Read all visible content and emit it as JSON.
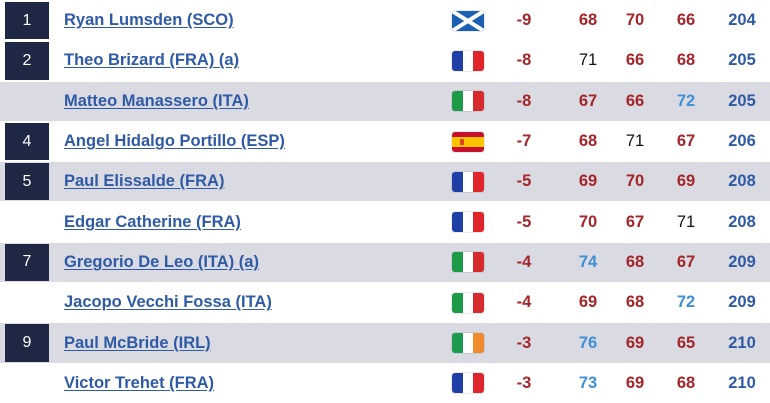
{
  "leaderboard": {
    "rows": [
      {
        "pos": "1",
        "player": "Ryan Lumsden (SCO)",
        "flag": "scotland-flag",
        "to_par": "-9",
        "rounds": [
          "68",
          "70",
          "66"
        ],
        "round_colors": [
          "red",
          "red",
          "red"
        ],
        "total": "204",
        "shaded": false
      },
      {
        "pos": "2",
        "player": "Theo Brizard (FRA) (a)",
        "flag": "france-flag",
        "to_par": "-8",
        "rounds": [
          "71",
          "66",
          "68"
        ],
        "round_colors": [
          "black",
          "red",
          "red"
        ],
        "total": "205",
        "shaded": false
      },
      {
        "pos": "",
        "player": "Matteo Manassero (ITA)",
        "flag": "italy-flag",
        "to_par": "-8",
        "rounds": [
          "67",
          "66",
          "72"
        ],
        "round_colors": [
          "red",
          "red",
          "blue"
        ],
        "total": "205",
        "shaded": true
      },
      {
        "pos": "4",
        "player": "Angel Hidalgo Portillo (ESP)",
        "flag": "spain-flag",
        "to_par": "-7",
        "rounds": [
          "68",
          "71",
          "67"
        ],
        "round_colors": [
          "red",
          "black",
          "red"
        ],
        "total": "206",
        "shaded": false
      },
      {
        "pos": "5",
        "player": "Paul Elissalde (FRA)",
        "flag": "france-flag",
        "to_par": "-5",
        "rounds": [
          "69",
          "70",
          "69"
        ],
        "round_colors": [
          "red",
          "red",
          "red"
        ],
        "total": "208",
        "shaded": true
      },
      {
        "pos": "",
        "player": "Edgar Catherine (FRA)",
        "flag": "france-flag",
        "to_par": "-5",
        "rounds": [
          "70",
          "67",
          "71"
        ],
        "round_colors": [
          "red",
          "red",
          "black"
        ],
        "total": "208",
        "shaded": false
      },
      {
        "pos": "7",
        "player": "Gregorio De Leo (ITA) (a)",
        "flag": "italy-flag",
        "to_par": "-4",
        "rounds": [
          "74",
          "68",
          "67"
        ],
        "round_colors": [
          "blue",
          "red",
          "red"
        ],
        "total": "209",
        "shaded": true
      },
      {
        "pos": "",
        "player": "Jacopo Vecchi Fossa (ITA)",
        "flag": "italy-flag",
        "to_par": "-4",
        "rounds": [
          "69",
          "68",
          "72"
        ],
        "round_colors": [
          "red",
          "red",
          "blue"
        ],
        "total": "209",
        "shaded": false
      },
      {
        "pos": "9",
        "player": "Paul McBride (IRL)",
        "flag": "ireland-flag",
        "to_par": "-3",
        "rounds": [
          "76",
          "69",
          "65"
        ],
        "round_colors": [
          "blue",
          "red",
          "red"
        ],
        "total": "210",
        "shaded": true
      },
      {
        "pos": "",
        "player": "Victor Trehet (FRA)",
        "flag": "france-flag",
        "to_par": "-3",
        "rounds": [
          "73",
          "69",
          "68"
        ],
        "round_colors": [
          "blue",
          "red",
          "red"
        ],
        "total": "210",
        "shaded": false
      }
    ]
  },
  "colors": {
    "position_badge": "#1e2744",
    "row_shade": "#dadae2",
    "under_par": "#a3262a",
    "over_par": "#3d8fd6",
    "even_par": "#111111",
    "player_link": "#2f5aa6"
  }
}
